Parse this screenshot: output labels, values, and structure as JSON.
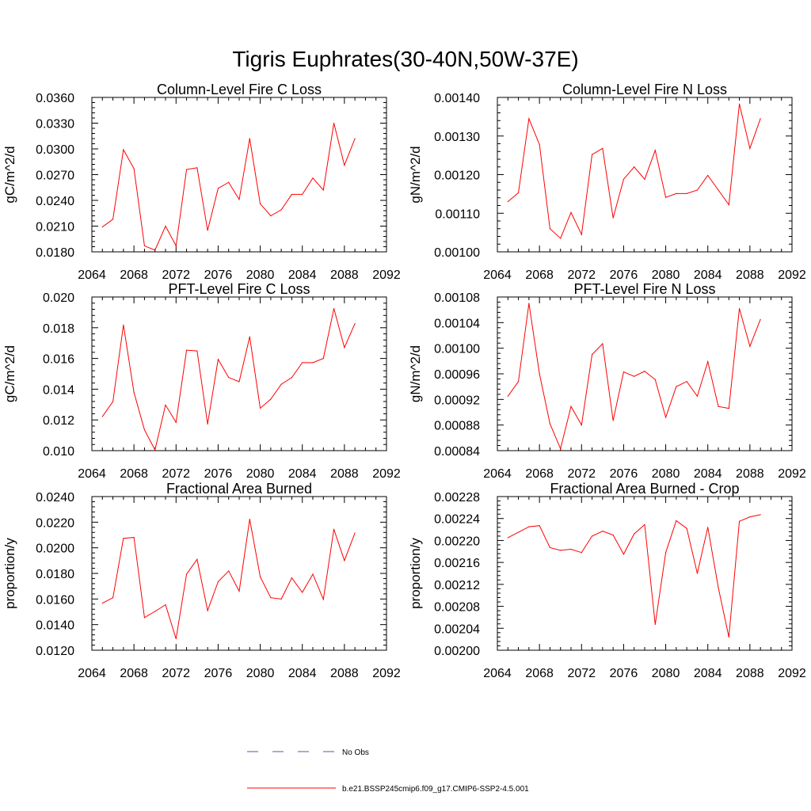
{
  "figure": {
    "title": "Tigris Euphrates(30-40N,50W-37E)"
  },
  "colors": {
    "series": "#ff0000",
    "obs": "#5555aa",
    "axis": "#000000"
  },
  "legend": {
    "placement": "bottom-center",
    "items": [
      {
        "label": "No Obs",
        "style": "dashed",
        "color": "#5555aa"
      },
      {
        "label": "b.e21.BSSP245cmip6.f09_g17.CMIP6-SSP2-4.5.001",
        "style": "solid",
        "color": "#ff0000"
      }
    ]
  },
  "chart_data": [
    {
      "type": "line",
      "title": "Column-Level Fire C Loss",
      "ylabel": "gC/m^2/d",
      "xlim": [
        2064,
        2092
      ],
      "ylim": [
        0.018,
        0.036
      ],
      "xticks": [
        2064,
        2068,
        2072,
        2076,
        2080,
        2084,
        2088,
        2092
      ],
      "xtick_labels": [
        "2064",
        "2068",
        "2072",
        "2076",
        "2080",
        "2084",
        "2088",
        "2092"
      ],
      "yticks": [
        0.018,
        0.021,
        0.024,
        0.027,
        0.03,
        0.033,
        0.036
      ],
      "ytick_labels": [
        "0.0180",
        "0.0210",
        "0.0240",
        "0.0270",
        "0.0300",
        "0.0330",
        "0.0360"
      ],
      "x": [
        2065,
        2066,
        2067,
        2068,
        2069,
        2070,
        2071,
        2072,
        2073,
        2074,
        2075,
        2076,
        2077,
        2078,
        2079,
        2080,
        2081,
        2082,
        2083,
        2084,
        2085,
        2086,
        2087,
        2088,
        2089
      ],
      "values": [
        0.0209,
        0.0218,
        0.0299,
        0.0277,
        0.0187,
        0.0182,
        0.021,
        0.0187,
        0.0276,
        0.0278,
        0.0205,
        0.0254,
        0.0261,
        0.0241,
        0.0312,
        0.0236,
        0.0222,
        0.0229,
        0.0247,
        0.0247,
        0.0266,
        0.0252,
        0.033,
        0.0281,
        0.0312
      ]
    },
    {
      "type": "line",
      "title": "Column-Level Fire N Loss",
      "ylabel": "gN/m^2/d",
      "xlim": [
        2064,
        2092
      ],
      "ylim": [
        0.001,
        0.0014
      ],
      "xticks": [
        2064,
        2068,
        2072,
        2076,
        2080,
        2084,
        2088,
        2092
      ],
      "xtick_labels": [
        "2064",
        "2068",
        "2072",
        "2076",
        "2080",
        "2084",
        "2088",
        "2092"
      ],
      "yticks": [
        0.001,
        0.0011,
        0.0012,
        0.0013,
        0.0014
      ],
      "ytick_labels": [
        "0.00100",
        "0.00110",
        "0.00120",
        "0.00130",
        "0.00140"
      ],
      "x": [
        2065,
        2066,
        2067,
        2068,
        2069,
        2070,
        2071,
        2072,
        2073,
        2074,
        2075,
        2076,
        2077,
        2078,
        2079,
        2080,
        2081,
        2082,
        2083,
        2084,
        2085,
        2086,
        2087,
        2088,
        2089
      ],
      "values": [
        0.00113,
        0.001153,
        0.001345,
        0.001278,
        0.00106,
        0.001035,
        0.001102,
        0.001045,
        0.001252,
        0.001268,
        0.001088,
        0.001188,
        0.00122,
        0.001188,
        0.001263,
        0.001141,
        0.001151,
        0.001151,
        0.00116,
        0.001198,
        0.00116,
        0.001122,
        0.001383,
        0.001268,
        0.001345
      ]
    },
    {
      "type": "line",
      "title": "PFT-Level Fire C Loss",
      "ylabel": "gC/m^2/d",
      "xlim": [
        2064,
        2092
      ],
      "ylim": [
        0.01,
        0.02
      ],
      "xticks": [
        2064,
        2068,
        2072,
        2076,
        2080,
        2084,
        2088,
        2092
      ],
      "xtick_labels": [
        "2064",
        "2068",
        "2072",
        "2076",
        "2080",
        "2084",
        "2088",
        "2092"
      ],
      "yticks": [
        0.01,
        0.012,
        0.014,
        0.016,
        0.018,
        0.02
      ],
      "ytick_labels": [
        "0.010",
        "0.012",
        "0.014",
        "0.016",
        "0.018",
        "0.020"
      ],
      "x": [
        2065,
        2066,
        2067,
        2068,
        2069,
        2070,
        2071,
        2072,
        2073,
        2074,
        2075,
        2076,
        2077,
        2078,
        2079,
        2080,
        2081,
        2082,
        2083,
        2084,
        2085,
        2086,
        2087,
        2088,
        2089
      ],
      "values": [
        0.01222,
        0.01319,
        0.01818,
        0.01379,
        0.01135,
        0.01005,
        0.01297,
        0.01184,
        0.01654,
        0.01649,
        0.01173,
        0.01594,
        0.01476,
        0.01449,
        0.01741,
        0.01276,
        0.01335,
        0.01432,
        0.01476,
        0.01573,
        0.01573,
        0.016,
        0.01925,
        0.01671,
        0.01827
      ]
    },
    {
      "type": "line",
      "title": "PFT-Level Fire N Loss",
      "ylabel": "gN/m^2/d",
      "xlim": [
        2064,
        2092
      ],
      "ylim": [
        0.00084,
        0.00108
      ],
      "xticks": [
        2064,
        2068,
        2072,
        2076,
        2080,
        2084,
        2088,
        2092
      ],
      "xtick_labels": [
        "2064",
        "2068",
        "2072",
        "2076",
        "2080",
        "2084",
        "2088",
        "2092"
      ],
      "yticks": [
        0.00084,
        0.00088,
        0.00092,
        0.00096,
        0.001,
        0.00104,
        0.00108
      ],
      "ytick_labels": [
        "0.00084",
        "0.00088",
        "0.00092",
        "0.00096",
        "0.00100",
        "0.00104",
        "0.00108"
      ],
      "x": [
        2065,
        2066,
        2067,
        2068,
        2069,
        2070,
        2071,
        2072,
        2073,
        2074,
        2075,
        2076,
        2077,
        2078,
        2079,
        2080,
        2081,
        2082,
        2083,
        2084,
        2085,
        2086,
        2087,
        2088,
        2089
      ],
      "values": [
        0.000925,
        0.000948,
        0.00107,
        0.00096,
        0.000882,
        0.000843,
        0.000909,
        0.00088,
        0.00099,
        0.001007,
        0.000887,
        0.000963,
        0.000956,
        0.000964,
        0.000951,
        0.000892,
        0.00094,
        0.000948,
        0.000925,
        0.000979,
        0.000909,
        0.000906,
        0.001062,
        0.001003,
        0.001045
      ]
    },
    {
      "type": "line",
      "title": "Fractional Area Burned",
      "ylabel": "proportion/y",
      "xlim": [
        2064,
        2092
      ],
      "ylim": [
        0.012,
        0.024
      ],
      "xticks": [
        2064,
        2068,
        2072,
        2076,
        2080,
        2084,
        2088,
        2092
      ],
      "xtick_labels": [
        "2064",
        "2068",
        "2072",
        "2076",
        "2080",
        "2084",
        "2088",
        "2092"
      ],
      "yticks": [
        0.012,
        0.014,
        0.016,
        0.018,
        0.02,
        0.022,
        0.024
      ],
      "ytick_labels": [
        "0.0120",
        "0.0140",
        "0.0160",
        "0.0180",
        "0.0200",
        "0.0220",
        "0.0240"
      ],
      "x": [
        2065,
        2066,
        2067,
        2068,
        2069,
        2070,
        2071,
        2072,
        2073,
        2074,
        2075,
        2076,
        2077,
        2078,
        2079,
        2080,
        2081,
        2082,
        2083,
        2084,
        2085,
        2086,
        2087,
        2088,
        2089
      ],
      "values": [
        0.01568,
        0.0161,
        0.02074,
        0.02081,
        0.01455,
        0.01503,
        0.01555,
        0.0129,
        0.01794,
        0.0191,
        0.0151,
        0.01735,
        0.01819,
        0.01661,
        0.02223,
        0.01774,
        0.0161,
        0.016,
        0.01765,
        0.01652,
        0.01794,
        0.01597,
        0.02145,
        0.019,
        0.02116
      ]
    },
    {
      "type": "line",
      "title": "Fractional Area Burned - Crop",
      "ylabel": "proportion/y",
      "xlim": [
        2064,
        2092
      ],
      "ylim": [
        0.002,
        0.00228
      ],
      "xticks": [
        2064,
        2068,
        2072,
        2076,
        2080,
        2084,
        2088,
        2092
      ],
      "xtick_labels": [
        "2064",
        "2068",
        "2072",
        "2076",
        "2080",
        "2084",
        "2088",
        "2092"
      ],
      "yticks": [
        0.002,
        0.00204,
        0.00208,
        0.00212,
        0.00216,
        0.0022,
        0.00224,
        0.00228
      ],
      "ytick_labels": [
        "0.00200",
        "0.00204",
        "0.00208",
        "0.00212",
        "0.00216",
        "0.00220",
        "0.00224",
        "0.00228"
      ],
      "x": [
        2065,
        2066,
        2067,
        2068,
        2069,
        2070,
        2071,
        2072,
        2073,
        2074,
        2075,
        2076,
        2077,
        2078,
        2079,
        2080,
        2081,
        2082,
        2083,
        2084,
        2085,
        2086,
        2087,
        2088,
        2089
      ],
      "values": [
        0.002205,
        0.002215,
        0.002225,
        0.002227,
        0.002187,
        0.002182,
        0.002184,
        0.002178,
        0.002208,
        0.002217,
        0.00221,
        0.002175,
        0.002212,
        0.002229,
        0.002047,
        0.002178,
        0.002236,
        0.002222,
        0.00214,
        0.002224,
        0.002114,
        0.002024,
        0.002235,
        0.002243,
        0.002247
      ]
    }
  ]
}
